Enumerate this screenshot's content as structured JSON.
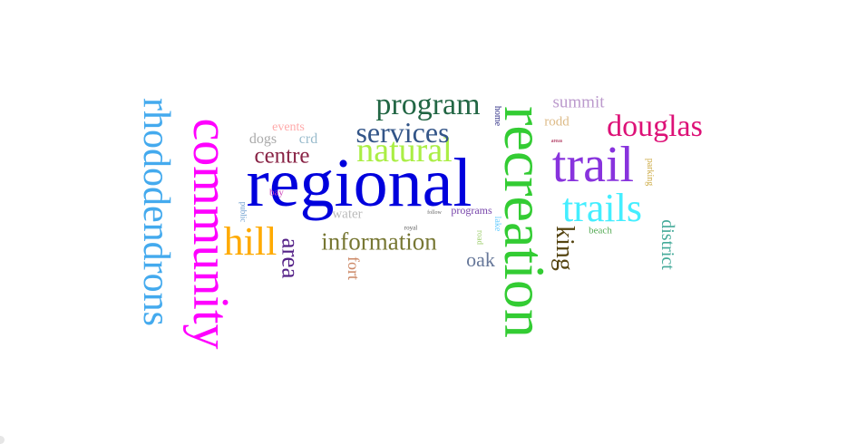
{
  "background": "#ffffff",
  "words": [
    {
      "key": "recreation",
      "text": "recreation",
      "color": "#33cc33"
    },
    {
      "key": "regional",
      "text": "regional",
      "color": "#0000dd"
    },
    {
      "key": "community",
      "text": "community",
      "color": "#ff00ff"
    },
    {
      "key": "rhododendrons",
      "text": "rhododendrons",
      "color": "#44aaee"
    },
    {
      "key": "trail",
      "text": "trail",
      "color": "#8833dd"
    },
    {
      "key": "trails",
      "text": "trails",
      "color": "#44eeff"
    },
    {
      "key": "douglas",
      "text": "douglas",
      "color": "#dd1177"
    },
    {
      "key": "natural",
      "text": "natural",
      "color": "#aaee44"
    },
    {
      "key": "program",
      "text": "program",
      "color": "#226644"
    },
    {
      "key": "services",
      "text": "services",
      "color": "#335588"
    },
    {
      "key": "hill",
      "text": "hill",
      "color": "#ffaa00"
    },
    {
      "key": "information",
      "text": "information",
      "color": "#777733"
    },
    {
      "key": "centre",
      "text": "centre",
      "color": "#882244"
    },
    {
      "key": "area",
      "text": "area",
      "color": "#552288"
    },
    {
      "key": "king",
      "text": "king",
      "color": "#554411"
    },
    {
      "key": "district",
      "text": "district",
      "color": "#44aa99"
    },
    {
      "key": "oak",
      "text": "oak",
      "color": "#667799"
    },
    {
      "key": "summit",
      "text": "summit",
      "color": "#bb99cc"
    },
    {
      "key": "rodd",
      "text": "rodd",
      "color": "#ddbb88"
    },
    {
      "key": "fort",
      "text": "fort",
      "color": "#cc8866"
    },
    {
      "key": "water",
      "text": "water",
      "color": "#bbbbbb"
    },
    {
      "key": "dogs",
      "text": "dogs",
      "color": "#aaaaaa"
    },
    {
      "key": "crd",
      "text": "crd",
      "color": "#99bbcc"
    },
    {
      "key": "events",
      "text": "events",
      "color": "#ffaaaa"
    },
    {
      "key": "programs",
      "text": "programs",
      "color": "#7744aa"
    },
    {
      "key": "beach",
      "text": "beach",
      "color": "#55aa55"
    },
    {
      "key": "parking",
      "text": "parking",
      "color": "#ccaa44"
    },
    {
      "key": "bay",
      "text": "bay",
      "color": "#cc44bb"
    },
    {
      "key": "public",
      "text": "public",
      "color": "#6699cc"
    },
    {
      "key": "home",
      "text": "home",
      "color": "#333388"
    },
    {
      "key": "lake",
      "text": "lake",
      "color": "#66ccff"
    },
    {
      "key": "road",
      "text": "road",
      "color": "#99cc66"
    },
    {
      "key": "royal",
      "text": "royal",
      "color": "#555555"
    },
    {
      "key": "follow",
      "text": "follow",
      "color": "#666666"
    },
    {
      "key": "areas",
      "text": "areas",
      "color": "#990033"
    }
  ]
}
